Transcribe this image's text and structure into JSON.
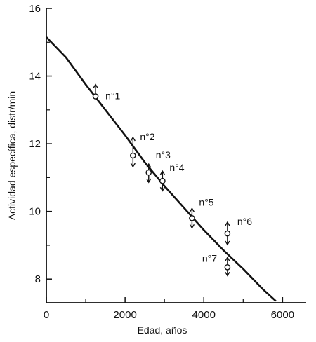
{
  "chart_data": {
    "type": "scatter",
    "title": "",
    "xlabel": "Edad, años",
    "ylabel": "Actividad específica, distr/min",
    "xlim": [
      0,
      6600
    ],
    "ylim": [
      7.3,
      16
    ],
    "x_ticks": [
      0,
      2000,
      4000,
      6000
    ],
    "y_ticks": [
      8,
      10,
      12,
      14,
      16
    ],
    "x_minor_ticks": [
      1000,
      3000,
      5000
    ],
    "y_minor_ticks": [
      9,
      11,
      13,
      15
    ],
    "grid": false,
    "points": [
      {
        "label": "n°1",
        "x": 1250,
        "y": 13.4
      },
      {
        "label": "n°2",
        "x": 2200,
        "y": 11.65
      },
      {
        "label": "n°3",
        "x": 2600,
        "y": 11.15
      },
      {
        "label": "n°4",
        "x": 2950,
        "y": 10.9
      },
      {
        "label": "n°5",
        "x": 3700,
        "y": 9.8
      },
      {
        "label": "n°6",
        "x": 4600,
        "y": 9.35
      },
      {
        "label": "n°7",
        "x": 4600,
        "y": 8.35
      }
    ],
    "curve": {
      "x": [
        0,
        500,
        1000,
        1500,
        2000,
        2500,
        3000,
        3500,
        4000,
        4500,
        5000,
        5500,
        5830
      ],
      "y": [
        15.15,
        14.55,
        13.75,
        13.0,
        12.25,
        11.45,
        10.75,
        10.1,
        9.45,
        8.85,
        8.3,
        7.7,
        7.35
      ]
    }
  }
}
